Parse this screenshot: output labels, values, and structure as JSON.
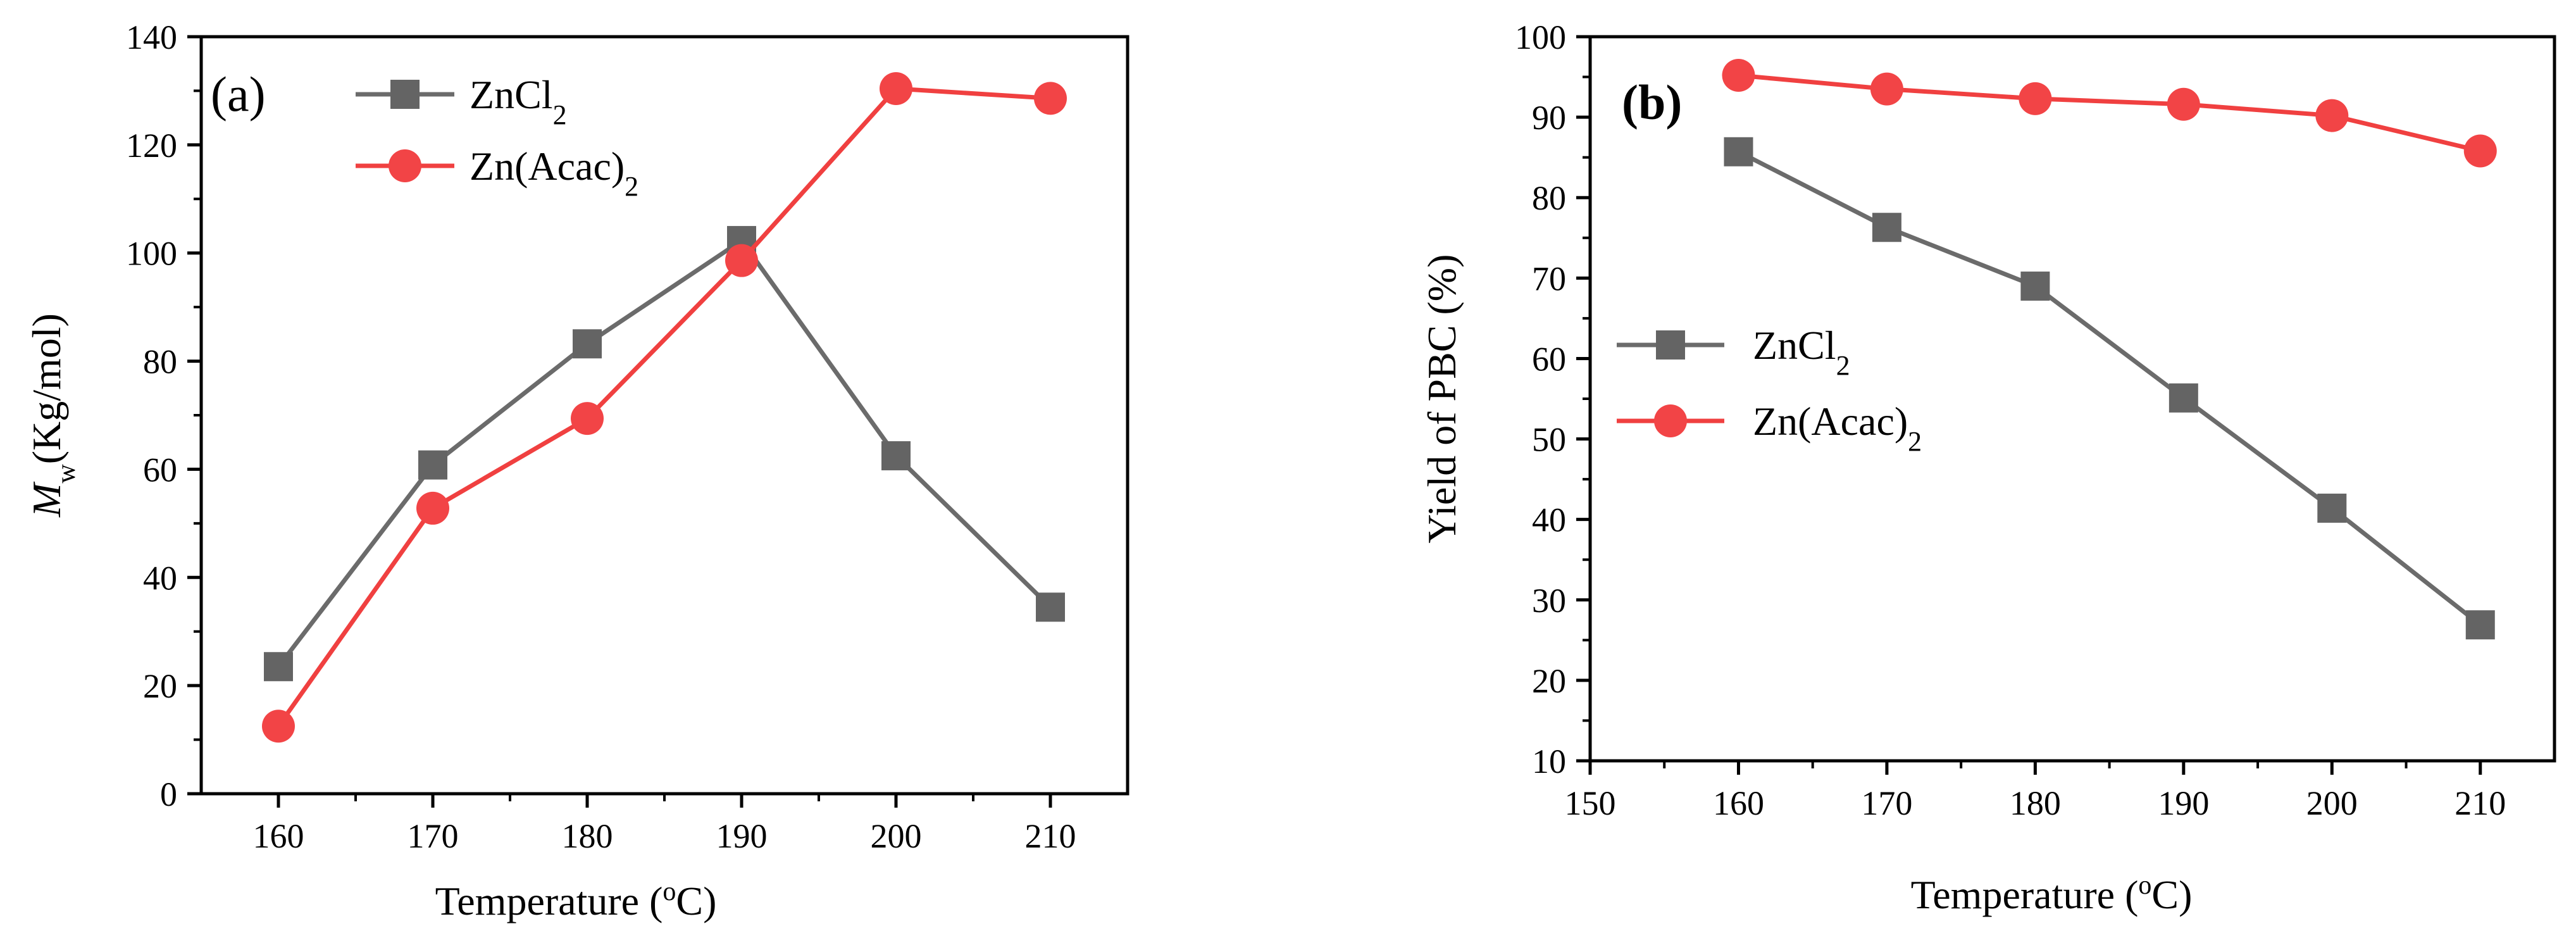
{
  "colors": {
    "zncl2": "#6b6b6b",
    "zncl2_marker": "#646464",
    "znacac2": "#f04040",
    "znacac2_marker": "#f24446",
    "axis": "#000000"
  },
  "chart_data": [
    {
      "type": "line",
      "panel_label": "(a)",
      "title": "",
      "xlabel": "Temperature (oC)",
      "xlabel_parts": {
        "before": "Temperature (",
        "sup": "o",
        "after": "C)"
      },
      "ylabel": "Mw(Kg/mol)",
      "ylabel_parts": {
        "main": "M",
        "sub": "w",
        "after": "(Kg/mol)"
      },
      "xlim": [
        155,
        215
      ],
      "ylim": [
        0,
        140
      ],
      "xticks": [
        160,
        170,
        180,
        190,
        200,
        210
      ],
      "yticks": [
        0,
        20,
        40,
        60,
        80,
        100,
        120,
        140
      ],
      "grid": false,
      "legend_position": "top-left",
      "x": [
        160,
        170,
        180,
        190,
        200,
        210
      ],
      "series": [
        {
          "name": "ZnCl2",
          "label_main": "ZnCl",
          "label_sub": "2",
          "marker": "square",
          "values": [
            23.5,
            60.8,
            83.2,
            102.3,
            62.5,
            34.5
          ]
        },
        {
          "name": "Zn(Acac)2",
          "label_main": "Zn(Acac)",
          "label_sub": "2",
          "marker": "circle",
          "values": [
            12.5,
            52.8,
            69.4,
            98.6,
            130.4,
            128.6
          ]
        }
      ]
    },
    {
      "type": "line",
      "panel_label": "(b)",
      "title": "",
      "xlabel": "Temperature (oC)",
      "xlabel_parts": {
        "before": "Temperature (",
        "sup": "o",
        "after": "C)"
      },
      "ylabel": "Yield of PBC (%)",
      "ylabel_parts": {
        "main": "Yield of PBC (%)",
        "sub": "",
        "after": ""
      },
      "xlim": [
        150,
        215
      ],
      "ylim": [
        10,
        100
      ],
      "xticks": [
        150,
        160,
        170,
        180,
        190,
        200,
        210
      ],
      "yticks": [
        10,
        20,
        30,
        40,
        50,
        60,
        70,
        80,
        90,
        100
      ],
      "grid": false,
      "legend_position": "center-left",
      "x": [
        160,
        170,
        180,
        190,
        200,
        210
      ],
      "series": [
        {
          "name": "ZnCl2",
          "label_main": "ZnCl",
          "label_sub": "2",
          "marker": "square",
          "values": [
            85.7,
            76.3,
            69.0,
            55.1,
            41.4,
            26.9
          ]
        },
        {
          "name": "Zn(Acac)2",
          "label_main": "Zn(Acac)",
          "label_sub": "2",
          "marker": "circle",
          "values": [
            95.2,
            93.5,
            92.3,
            91.6,
            90.2,
            85.8
          ]
        }
      ]
    }
  ]
}
